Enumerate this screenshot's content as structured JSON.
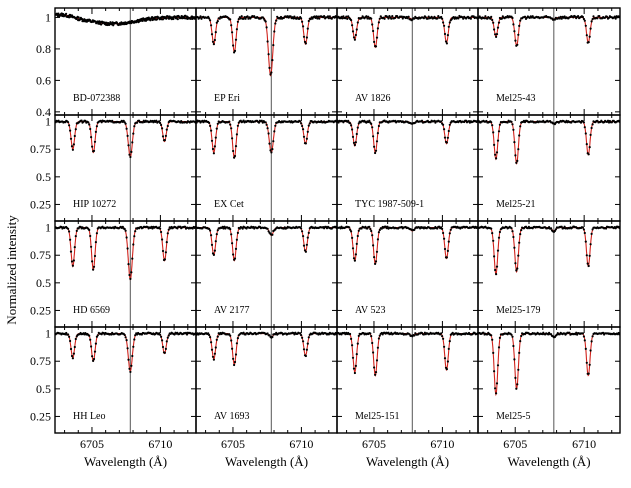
{
  "chart_data": {
    "type": "scatter",
    "layout": {
      "rows": 4,
      "cols": 4,
      "shared_x": true,
      "shared_y_by_row": true
    },
    "xlabel": "Wavelength (Å)",
    "ylabel": "Normalized intensity",
    "xlim": [
      6702.3,
      6712.6
    ],
    "x_ticks": [
      6705,
      6710
    ],
    "x_ticklabels": [
      "6705",
      "6710"
    ],
    "line_marker_x": 6707.8,
    "series_style": {
      "observed": "black points",
      "model": "red line"
    },
    "rows": [
      {
        "ylim": [
          0.38,
          1.06
        ],
        "y_ticks": [
          0.4,
          0.6,
          0.8,
          1
        ],
        "y_ticklabels": [
          "0.4",
          "0.6",
          "0.8",
          "1"
        ]
      },
      {
        "ylim": [
          0.1,
          1.06
        ],
        "y_ticks": [
          0.25,
          0.5,
          0.75,
          1
        ],
        "y_ticklabels": [
          "0.25",
          "0.5",
          "0.75",
          "1"
        ]
      },
      {
        "ylim": [
          0.1,
          1.06
        ],
        "y_ticks": [
          0.25,
          0.5,
          0.75,
          1
        ],
        "y_ticklabels": [
          "0.25",
          "0.5",
          "0.75",
          "1"
        ]
      },
      {
        "ylim": [
          0.1,
          1.06
        ],
        "y_ticks": [
          0.25,
          0.5,
          0.75,
          1
        ],
        "y_ticklabels": [
          "0.25",
          "0.5",
          "0.75",
          "1"
        ]
      }
    ],
    "top_left_corner_label": "0.4",
    "panels": [
      {
        "name": "BD-072388",
        "row": 0,
        "col": 0,
        "broad": true,
        "lines": [
          {
            "center": 6706.5,
            "depth": 0.04,
            "width": 1.6
          }
        ]
      },
      {
        "name": "EP Eri",
        "row": 0,
        "col": 1,
        "lines": [
          {
            "center": 6703.6,
            "depth": 0.17,
            "width": 0.13
          },
          {
            "center": 6705.1,
            "depth": 0.22,
            "width": 0.13
          },
          {
            "center": 6707.75,
            "depth": 0.37,
            "width": 0.16
          },
          {
            "center": 6710.3,
            "depth": 0.17,
            "width": 0.13
          }
        ]
      },
      {
        "name": "AV 1826",
        "row": 0,
        "col": 2,
        "lines": [
          {
            "center": 6703.6,
            "depth": 0.14,
            "width": 0.13
          },
          {
            "center": 6705.1,
            "depth": 0.19,
            "width": 0.13
          },
          {
            "center": 6707.8,
            "depth": 0.01,
            "width": 0.13
          },
          {
            "center": 6710.3,
            "depth": 0.16,
            "width": 0.13
          }
        ]
      },
      {
        "name": "Mel25-43",
        "row": 0,
        "col": 3,
        "lines": [
          {
            "center": 6703.6,
            "depth": 0.12,
            "width": 0.13
          },
          {
            "center": 6705.1,
            "depth": 0.18,
            "width": 0.13
          },
          {
            "center": 6707.8,
            "depth": 0.01,
            "width": 0.13
          },
          {
            "center": 6710.3,
            "depth": 0.16,
            "width": 0.13
          }
        ]
      },
      {
        "name": "HIP 10272",
        "row": 1,
        "col": 0,
        "lines": [
          {
            "center": 6703.6,
            "depth": 0.25,
            "width": 0.13
          },
          {
            "center": 6705.1,
            "depth": 0.28,
            "width": 0.13
          },
          {
            "center": 6707.8,
            "depth": 0.32,
            "width": 0.15
          },
          {
            "center": 6710.3,
            "depth": 0.18,
            "width": 0.13
          }
        ]
      },
      {
        "name": "EX Cet",
        "row": 1,
        "col": 1,
        "lines": [
          {
            "center": 6703.6,
            "depth": 0.28,
            "width": 0.13
          },
          {
            "center": 6705.1,
            "depth": 0.33,
            "width": 0.13
          },
          {
            "center": 6707.8,
            "depth": 0.28,
            "width": 0.15
          },
          {
            "center": 6710.3,
            "depth": 0.2,
            "width": 0.13
          }
        ]
      },
      {
        "name": "TYC 1987-509-1",
        "row": 1,
        "col": 2,
        "lines": [
          {
            "center": 6703.6,
            "depth": 0.22,
            "width": 0.13
          },
          {
            "center": 6705.1,
            "depth": 0.28,
            "width": 0.13
          },
          {
            "center": 6707.8,
            "depth": 0.02,
            "width": 0.13
          },
          {
            "center": 6710.3,
            "depth": 0.2,
            "width": 0.13
          }
        ]
      },
      {
        "name": "Mel25-21",
        "row": 1,
        "col": 3,
        "lines": [
          {
            "center": 6703.6,
            "depth": 0.34,
            "width": 0.13
          },
          {
            "center": 6705.1,
            "depth": 0.38,
            "width": 0.13
          },
          {
            "center": 6707.8,
            "depth": 0.02,
            "width": 0.13
          },
          {
            "center": 6710.3,
            "depth": 0.3,
            "width": 0.13
          }
        ]
      },
      {
        "name": "HD 6569",
        "row": 2,
        "col": 0,
        "lines": [
          {
            "center": 6703.6,
            "depth": 0.35,
            "width": 0.13
          },
          {
            "center": 6705.1,
            "depth": 0.38,
            "width": 0.13
          },
          {
            "center": 6707.8,
            "depth": 0.47,
            "width": 0.15
          },
          {
            "center": 6710.3,
            "depth": 0.3,
            "width": 0.13
          }
        ]
      },
      {
        "name": "AV 2177",
        "row": 2,
        "col": 1,
        "lines": [
          {
            "center": 6703.6,
            "depth": 0.25,
            "width": 0.13
          },
          {
            "center": 6705.1,
            "depth": 0.3,
            "width": 0.13
          },
          {
            "center": 6707.8,
            "depth": 0.07,
            "width": 0.14
          },
          {
            "center": 6710.3,
            "depth": 0.22,
            "width": 0.13
          }
        ]
      },
      {
        "name": "AV 523",
        "row": 2,
        "col": 2,
        "lines": [
          {
            "center": 6703.6,
            "depth": 0.3,
            "width": 0.13
          },
          {
            "center": 6705.1,
            "depth": 0.33,
            "width": 0.13
          },
          {
            "center": 6707.8,
            "depth": 0.03,
            "width": 0.13
          },
          {
            "center": 6710.3,
            "depth": 0.28,
            "width": 0.13
          }
        ]
      },
      {
        "name": "Mel25-179",
        "row": 2,
        "col": 3,
        "lines": [
          {
            "center": 6703.6,
            "depth": 0.42,
            "width": 0.13
          },
          {
            "center": 6705.1,
            "depth": 0.4,
            "width": 0.13
          },
          {
            "center": 6707.8,
            "depth": 0.03,
            "width": 0.13
          },
          {
            "center": 6710.3,
            "depth": 0.35,
            "width": 0.13
          }
        ]
      },
      {
        "name": "HH Leo",
        "row": 3,
        "col": 0,
        "lines": [
          {
            "center": 6703.6,
            "depth": 0.22,
            "width": 0.13
          },
          {
            "center": 6705.1,
            "depth": 0.25,
            "width": 0.13
          },
          {
            "center": 6707.8,
            "depth": 0.34,
            "width": 0.15
          },
          {
            "center": 6710.3,
            "depth": 0.18,
            "width": 0.13
          }
        ]
      },
      {
        "name": "AV 1693",
        "row": 3,
        "col": 1,
        "lines": [
          {
            "center": 6703.6,
            "depth": 0.23,
            "width": 0.13
          },
          {
            "center": 6705.1,
            "depth": 0.28,
            "width": 0.13
          },
          {
            "center": 6707.8,
            "depth": 0.03,
            "width": 0.13
          },
          {
            "center": 6710.3,
            "depth": 0.2,
            "width": 0.13
          }
        ]
      },
      {
        "name": "Mel25-151",
        "row": 3,
        "col": 2,
        "lines": [
          {
            "center": 6703.6,
            "depth": 0.35,
            "width": 0.13
          },
          {
            "center": 6705.1,
            "depth": 0.38,
            "width": 0.13
          },
          {
            "center": 6707.8,
            "depth": 0.02,
            "width": 0.13
          },
          {
            "center": 6710.3,
            "depth": 0.33,
            "width": 0.13
          }
        ]
      },
      {
        "name": "Mel25-5",
        "row": 3,
        "col": 3,
        "lines": [
          {
            "center": 6703.6,
            "depth": 0.55,
            "width": 0.13
          },
          {
            "center": 6705.1,
            "depth": 0.5,
            "width": 0.13
          },
          {
            "center": 6707.8,
            "depth": 0.03,
            "width": 0.13
          },
          {
            "center": 6710.3,
            "depth": 0.38,
            "width": 0.13
          }
        ]
      }
    ]
  },
  "colors": {
    "model": "#d0231c",
    "observed": "#000000",
    "marker": "#555555"
  }
}
